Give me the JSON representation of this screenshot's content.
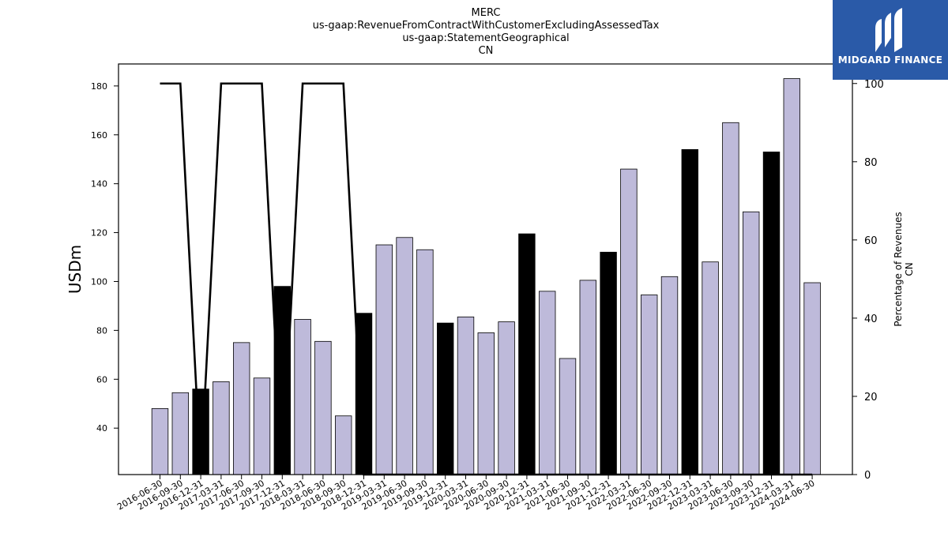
{
  "chart_data": {
    "type": "bar",
    "title_lines": [
      "MERC",
      "us-gaap:RevenueFromContractWithCustomerExcludingAssessedTax",
      "us-gaap:StatementGeographical",
      "CN"
    ],
    "ylabel": "USDm",
    "y2label_lines": [
      "Percentage of Revenues",
      "CN"
    ],
    "ylim": [
      21,
      189
    ],
    "y2lim": [
      0,
      105
    ],
    "yticks": [
      40,
      60,
      80,
      100,
      120,
      140,
      160,
      180
    ],
    "y2ticks": [
      0,
      20,
      40,
      60,
      80,
      100
    ],
    "categories": [
      "2016-06-30",
      "2016-09-30",
      "2016-12-31",
      "2017-03-31",
      "2017-06-30",
      "2017-09-30",
      "2017-12-31",
      "2018-03-31",
      "2018-06-30",
      "2018-09-30",
      "2018-12-31",
      "2019-03-31",
      "2019-06-30",
      "2019-09-30",
      "2019-12-31",
      "2020-03-31",
      "2020-06-30",
      "2020-09-30",
      "2020-12-31",
      "2021-03-31",
      "2021-06-30",
      "2021-09-30",
      "2021-12-31",
      "2022-03-31",
      "2022-06-30",
      "2022-09-30",
      "2022-12-31",
      "2023-03-31",
      "2023-06-30",
      "2023-09-30",
      "2023-12-31",
      "2024-03-31",
      "2024-06-30"
    ],
    "series": [
      {
        "values": [
          48,
          54.5,
          56,
          59,
          75,
          60.5,
          98,
          84.5,
          75.5,
          45,
          87,
          115,
          118,
          113,
          83,
          85.5,
          79,
          83.5,
          119.5,
          96,
          68.5,
          100.5,
          112,
          146,
          94.5,
          102,
          154,
          108,
          165,
          128.5,
          153,
          183,
          99.5
        ]
      },
      {
        "type": "line",
        "axis": "right",
        "values": [
          100,
          100,
          0,
          100,
          100,
          100,
          0,
          100,
          100,
          100,
          0,
          0,
          0,
          0,
          0,
          0,
          0,
          0,
          0,
          0,
          0,
          0,
          0,
          0,
          0,
          0,
          0,
          0,
          0,
          0,
          0,
          0,
          0
        ]
      }
    ],
    "highlight_indices": [
      2,
      6,
      10,
      14,
      18,
      22,
      26,
      30
    ],
    "colors": {
      "bar": "#bebada",
      "bar_highlight": "#000000",
      "bar_edge": "#000000",
      "line": "#000000"
    },
    "grid": false
  },
  "logo": {
    "text": "MIDGARD FINANCE",
    "color": "#2a5aa8"
  }
}
